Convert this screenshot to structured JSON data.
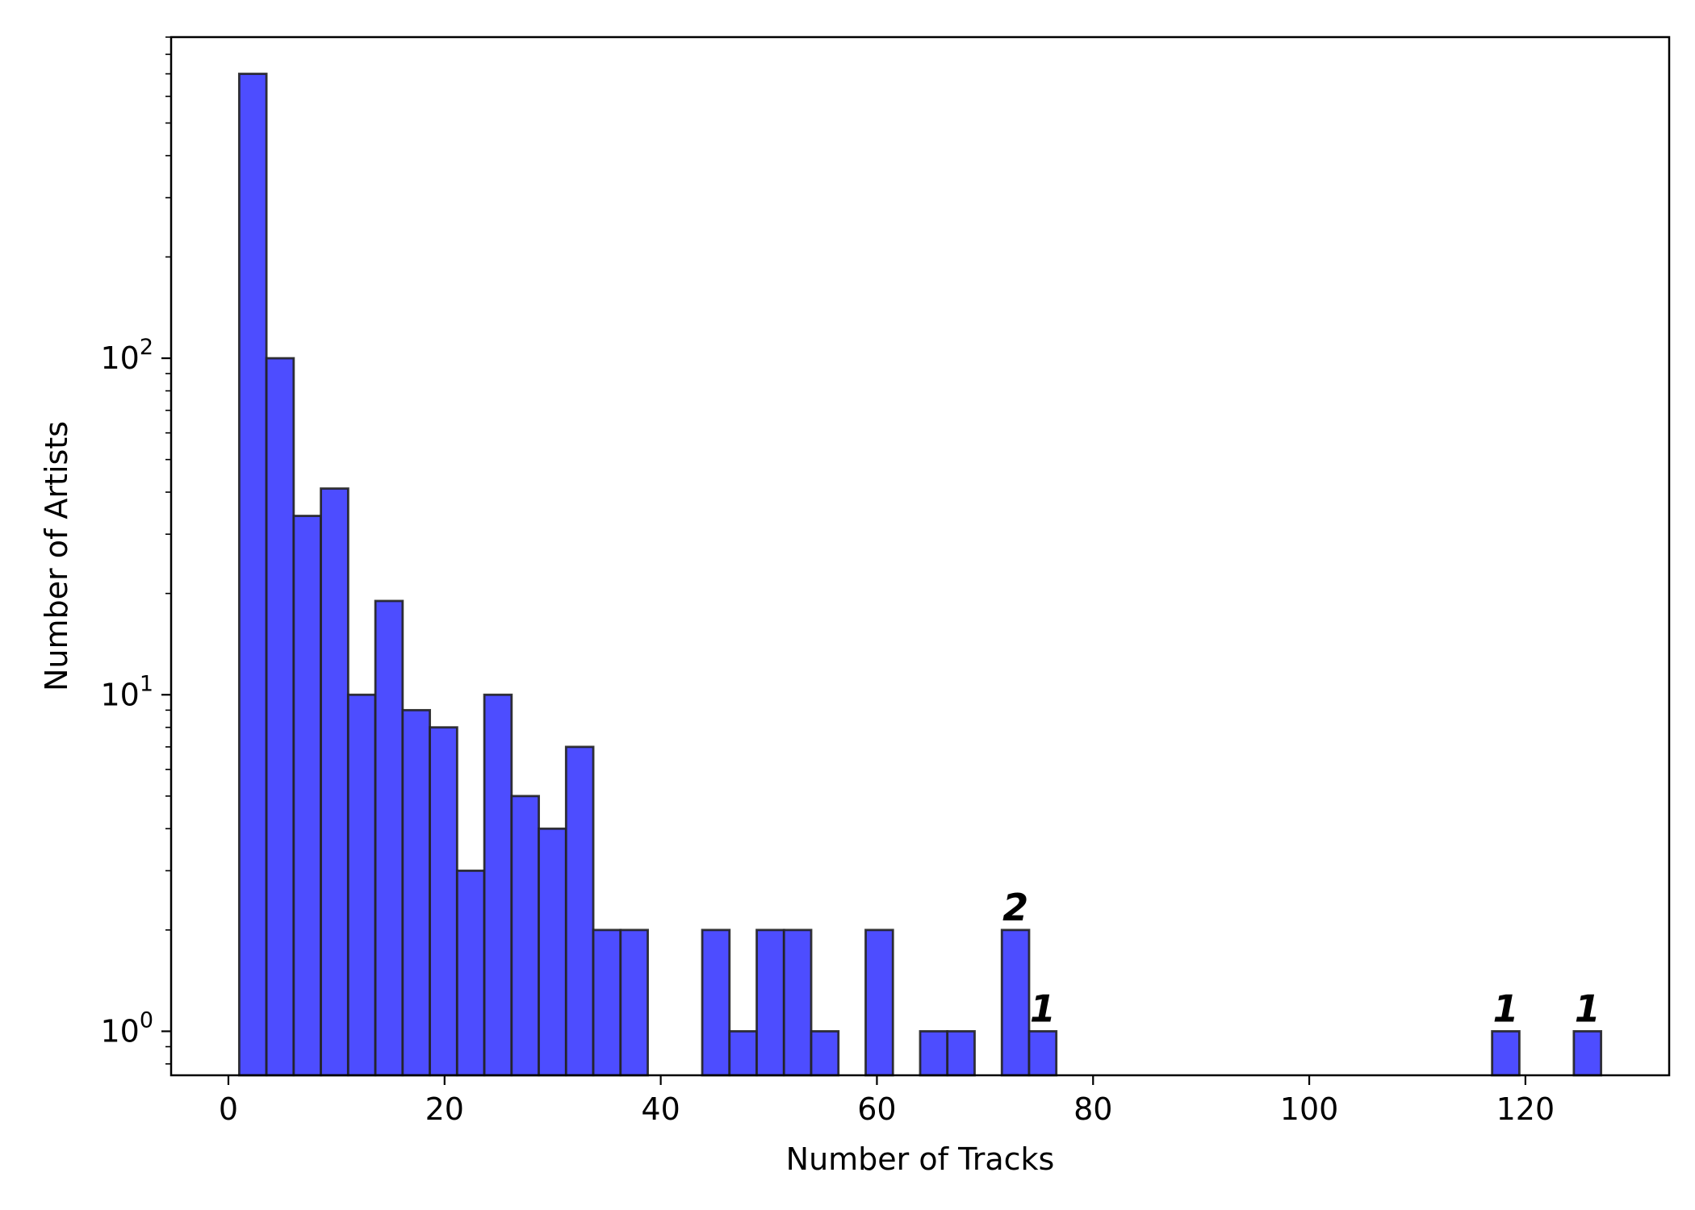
{
  "chart_data": {
    "type": "bar",
    "title": "",
    "xlabel": "Number of Tracks",
    "ylabel": "Number of Artists",
    "y_scale": "log",
    "xlim": [
      -5.3,
      133.3
    ],
    "ylim": [
      0.74,
      900
    ],
    "x_ticks": [
      0,
      20,
      40,
      60,
      80,
      100,
      120
    ],
    "x_tick_labels": [
      "0",
      "20",
      "40",
      "60",
      "80",
      "100",
      "120"
    ],
    "y_ticks": [
      1,
      10,
      100
    ],
    "y_tick_labels": [
      {
        "base": "10",
        "exp": "0"
      },
      {
        "base": "10",
        "exp": "1"
      },
      {
        "base": "10",
        "exp": "2"
      }
    ],
    "bar_color": "#4d4dff",
    "edge_color": "#222222",
    "grid": false,
    "bin_width": 2.52,
    "bins": [
      {
        "start": 1.0,
        "end": 3.52,
        "value": 700
      },
      {
        "start": 3.52,
        "end": 6.04,
        "value": 100
      },
      {
        "start": 6.04,
        "end": 8.56,
        "value": 34
      },
      {
        "start": 8.56,
        "end": 11.08,
        "value": 41
      },
      {
        "start": 11.08,
        "end": 13.6,
        "value": 10
      },
      {
        "start": 13.6,
        "end": 16.12,
        "value": 19
      },
      {
        "start": 16.12,
        "end": 18.64,
        "value": 9
      },
      {
        "start": 18.64,
        "end": 21.16,
        "value": 8
      },
      {
        "start": 21.16,
        "end": 23.68,
        "value": 3
      },
      {
        "start": 23.68,
        "end": 26.2,
        "value": 10
      },
      {
        "start": 26.2,
        "end": 28.72,
        "value": 5
      },
      {
        "start": 28.72,
        "end": 31.24,
        "value": 4
      },
      {
        "start": 31.24,
        "end": 33.76,
        "value": 7
      },
      {
        "start": 33.76,
        "end": 36.28,
        "value": 2
      },
      {
        "start": 36.28,
        "end": 38.8,
        "value": 2
      },
      {
        "start": 43.84,
        "end": 46.36,
        "value": 2
      },
      {
        "start": 46.36,
        "end": 48.88,
        "value": 1
      },
      {
        "start": 48.88,
        "end": 51.4,
        "value": 2
      },
      {
        "start": 51.4,
        "end": 53.92,
        "value": 2
      },
      {
        "start": 53.92,
        "end": 56.44,
        "value": 1
      },
      {
        "start": 58.96,
        "end": 61.48,
        "value": 2
      },
      {
        "start": 64.0,
        "end": 66.52,
        "value": 1
      },
      {
        "start": 66.52,
        "end": 69.04,
        "value": 1
      },
      {
        "start": 71.56,
        "end": 74.08,
        "value": 2
      },
      {
        "start": 74.08,
        "end": 76.6,
        "value": 1
      },
      {
        "start": 116.92,
        "end": 119.44,
        "value": 1
      },
      {
        "start": 124.48,
        "end": 127.0,
        "value": 1
      }
    ],
    "annotations": [
      {
        "text": "2",
        "x": 72.82,
        "y": 2
      },
      {
        "text": "1",
        "x": 75.34,
        "y": 1
      },
      {
        "text": "1",
        "x": 118.18,
        "y": 1
      },
      {
        "text": "1",
        "x": 125.74,
        "y": 1
      }
    ]
  }
}
